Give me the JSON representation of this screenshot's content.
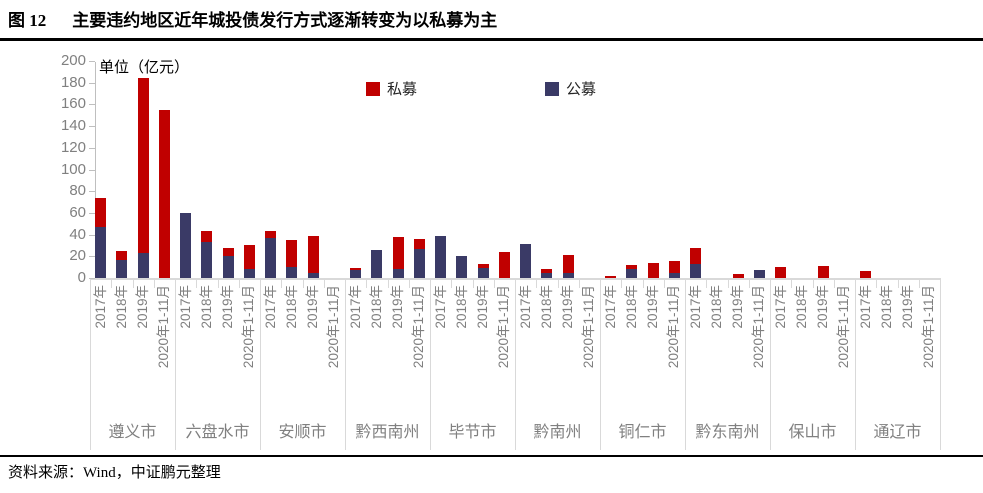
{
  "title": {
    "figure_label": "图 12",
    "text": "主要违约地区近年城投债发行方式逐渐转变为以私募为主"
  },
  "footer": {
    "text": "资料来源：Wind，中证鹏元整理"
  },
  "chart_data": {
    "type": "bar",
    "stacked": true,
    "unit_label": "单位（亿元）",
    "ylim": [
      0,
      200
    ],
    "yticks": [
      0,
      20,
      40,
      60,
      80,
      100,
      120,
      140,
      160,
      180,
      200
    ],
    "grid": false,
    "legend_position": "top-center",
    "legend": [
      {
        "label": "私募",
        "key": "simu",
        "color": "#C00000"
      },
      {
        "label": "公募",
        "key": "gongmu",
        "color": "#3A3A66"
      }
    ],
    "periods": [
      "2017年",
      "2018年",
      "2019年",
      "2020年1-11月"
    ],
    "groups": [
      {
        "name": "遵义市",
        "gongmu": [
          47,
          17,
          23,
          0
        ],
        "simu": [
          27,
          8,
          161,
          155
        ]
      },
      {
        "name": "六盘水市",
        "gongmu": [
          60,
          33,
          20,
          8
        ],
        "simu": [
          0,
          10,
          8,
          22
        ]
      },
      {
        "name": "安顺市",
        "gongmu": [
          37,
          10,
          5,
          0
        ],
        "simu": [
          6,
          25,
          34,
          0
        ]
      },
      {
        "name": "黔西南州",
        "gongmu": [
          7,
          26,
          8,
          27
        ],
        "simu": [
          2,
          0,
          30,
          9
        ]
      },
      {
        "name": "毕节市",
        "gongmu": [
          39,
          20,
          9,
          0
        ],
        "simu": [
          0,
          0,
          4,
          24
        ]
      },
      {
        "name": "黔南州",
        "gongmu": [
          31,
          5,
          5,
          0
        ],
        "simu": [
          0,
          3,
          16,
          0
        ]
      },
      {
        "name": "铜仁市",
        "gongmu": [
          0,
          8,
          0,
          5
        ],
        "simu": [
          2,
          4,
          14,
          11
        ]
      },
      {
        "name": "黔东南州",
        "gongmu": [
          13,
          0,
          0,
          7
        ],
        "simu": [
          15,
          0,
          4,
          0
        ]
      },
      {
        "name": "保山市",
        "gongmu": [
          0,
          0,
          0,
          0
        ],
        "simu": [
          10,
          0,
          11,
          0
        ]
      },
      {
        "name": "通辽市",
        "gongmu": [
          0,
          0,
          0,
          0
        ],
        "simu": [
          6,
          0,
          0,
          0
        ]
      }
    ]
  }
}
